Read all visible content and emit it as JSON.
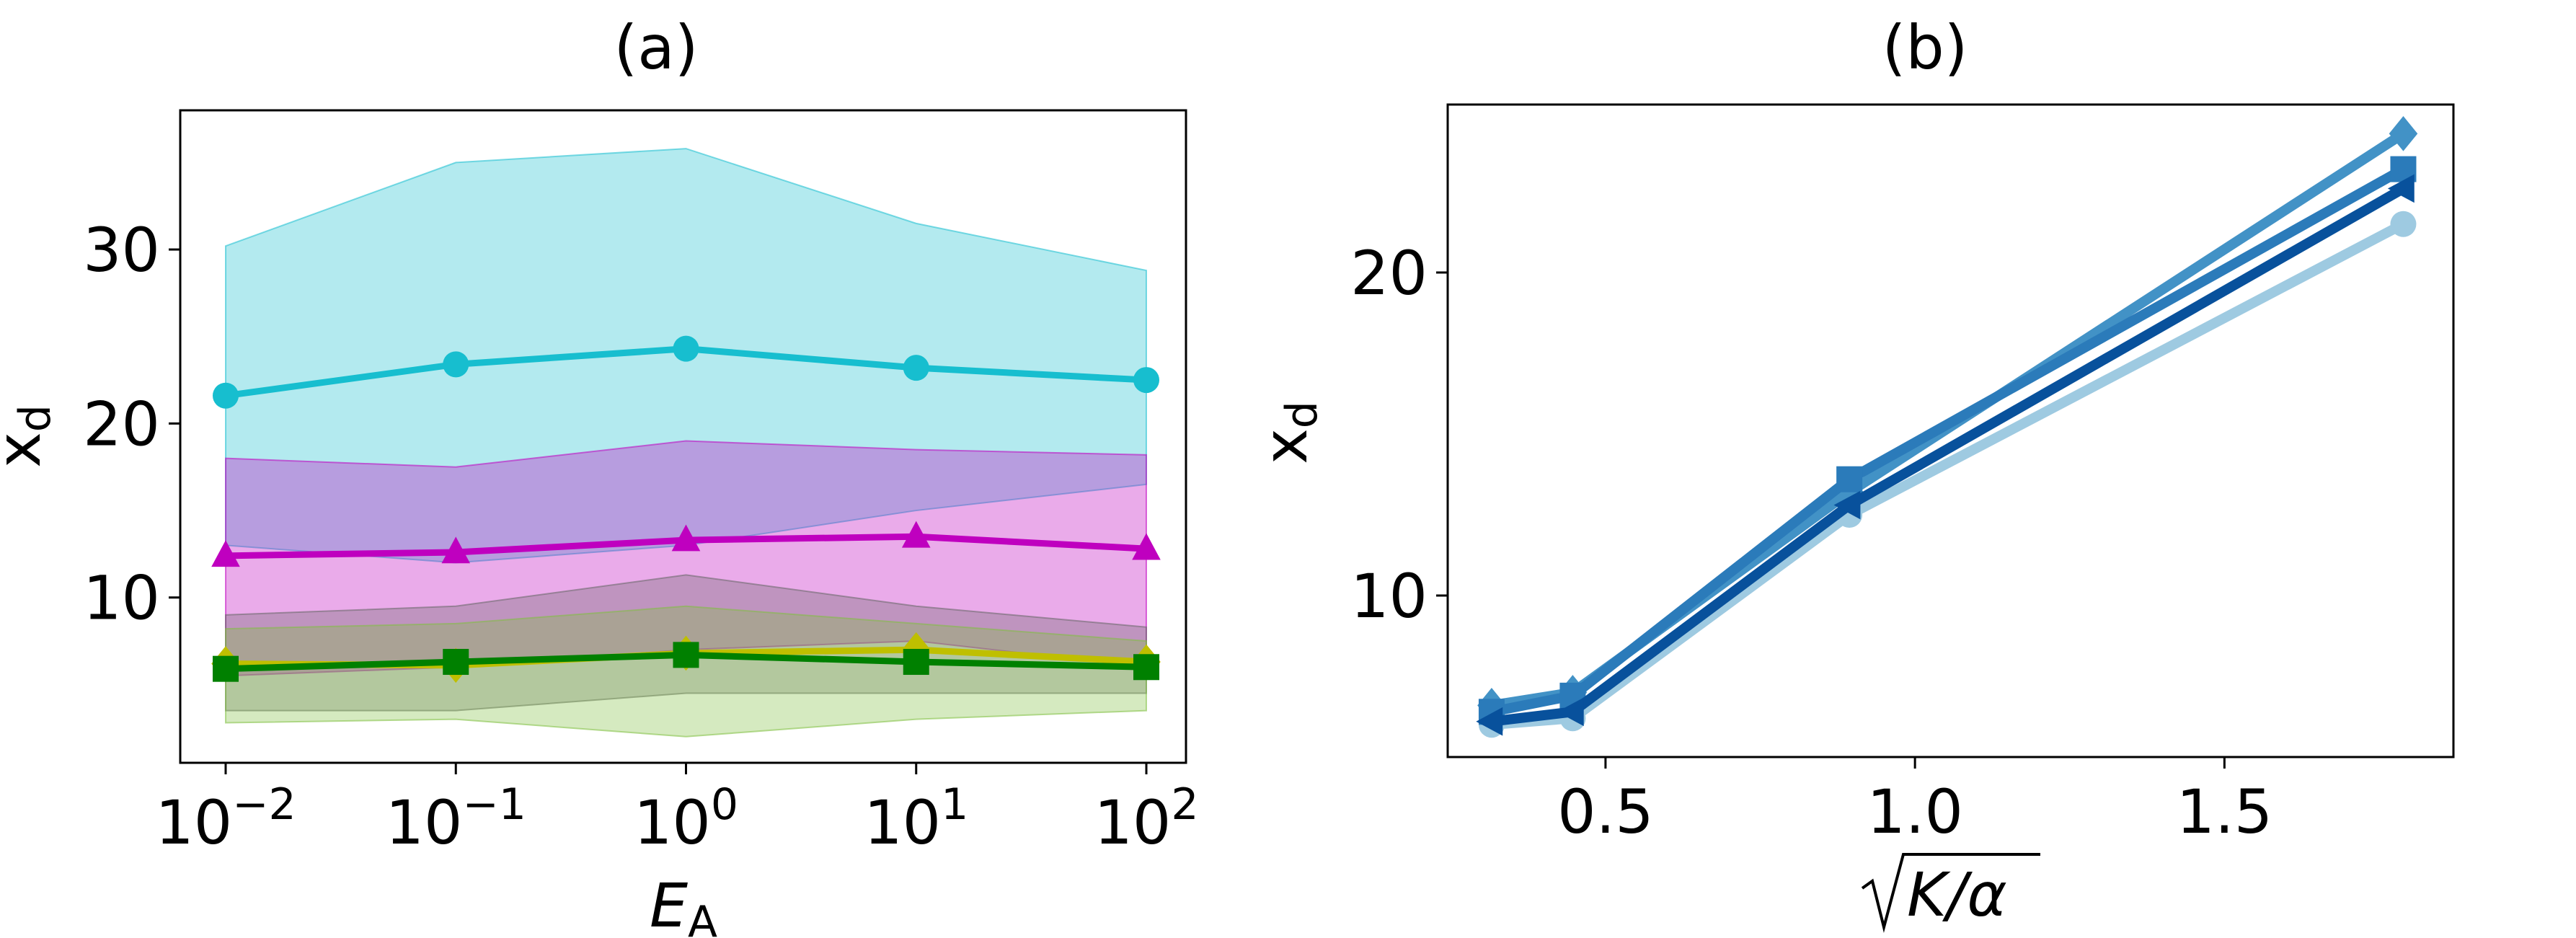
{
  "chart_data": [
    {
      "type": "line",
      "title": "(a)",
      "xlabel": "E",
      "xlabel_sub": "A",
      "ylabel": "x",
      "ylabel_sub": "d",
      "x_scale": "log",
      "x": [
        0.01,
        0.1,
        1,
        10,
        100
      ],
      "x_ticks": [
        {
          "base": "10",
          "exp": "−2",
          "value": 0.01
        },
        {
          "base": "10",
          "exp": "−1",
          "value": 0.1
        },
        {
          "base": "10",
          "exp": "0",
          "value": 1
        },
        {
          "base": "10",
          "exp": "1",
          "value": 10
        },
        {
          "base": "10",
          "exp": "2",
          "value": 100
        }
      ],
      "y_ticks": [
        "10",
        "20",
        "30"
      ],
      "ylim": [
        0.5,
        38
      ],
      "grid": false,
      "series": [
        {
          "values": [
            21.6,
            23.4,
            24.3,
            23.2,
            22.5
          ],
          "lower": [
            13,
            12,
            13,
            15,
            16.5
          ],
          "upper": [
            30.2,
            35,
            35.8,
            31.5,
            28.8
          ],
          "color": "#17becf",
          "band_color": "#17becf",
          "marker": "circle"
        },
        {
          "values": [
            12.4,
            12.6,
            13.3,
            13.5,
            12.8
          ],
          "lower": [
            5.5,
            6,
            7,
            7.5,
            6
          ],
          "upper": [
            18,
            17.5,
            19,
            18.5,
            18.2
          ],
          "color": "#bf00bf",
          "band_color": "#bf00bf",
          "marker": "triangle"
        },
        {
          "values": [
            6.2,
            6.1,
            6.8,
            7.0,
            6.3
          ],
          "lower": [
            3.5,
            3.5,
            4.5,
            4.5,
            4.5
          ],
          "upper": [
            9,
            9.5,
            11.3,
            9.5,
            8.3
          ],
          "color": "#bfbf00",
          "band_color": "#666666",
          "marker": "diamond"
        },
        {
          "values": [
            5.9,
            6.3,
            6.7,
            6.3,
            6.0
          ],
          "lower": [
            2.8,
            3,
            2,
            3,
            3.5
          ],
          "upper": [
            8.2,
            8.5,
            9.5,
            8.5,
            7.5
          ],
          "color": "#008000",
          "band_color": "#7fbf3f",
          "marker": "square"
        }
      ]
    },
    {
      "type": "line",
      "title": "(b)",
      "xlabel": "K/α",
      "ylabel": "x",
      "ylabel_sub": "d",
      "x": [
        0.316,
        0.447,
        0.894,
        1.789
      ],
      "x_ticks": [
        "0.5",
        "1.0",
        "1.5"
      ],
      "y_ticks": [
        "10",
        "20"
      ],
      "xlim": [
        0.245,
        1.87
      ],
      "ylim": [
        5,
        25.2
      ],
      "grid": false,
      "series": [
        {
          "values": [
            6.0,
            6.2,
            12.5,
            21.5
          ],
          "color": "#9ecae1",
          "marker": "circle"
        },
        {
          "values": [
            6.6,
            7.0,
            13.2,
            24.3
          ],
          "color": "#4292c6",
          "marker": "diamond"
        },
        {
          "values": [
            6.4,
            6.9,
            13.6,
            23.2
          ],
          "color": "#2b7bba",
          "marker": "square"
        },
        {
          "values": [
            6.1,
            6.4,
            12.8,
            22.6
          ],
          "color": "#08519c",
          "marker": "triangle-left"
        }
      ]
    }
  ]
}
